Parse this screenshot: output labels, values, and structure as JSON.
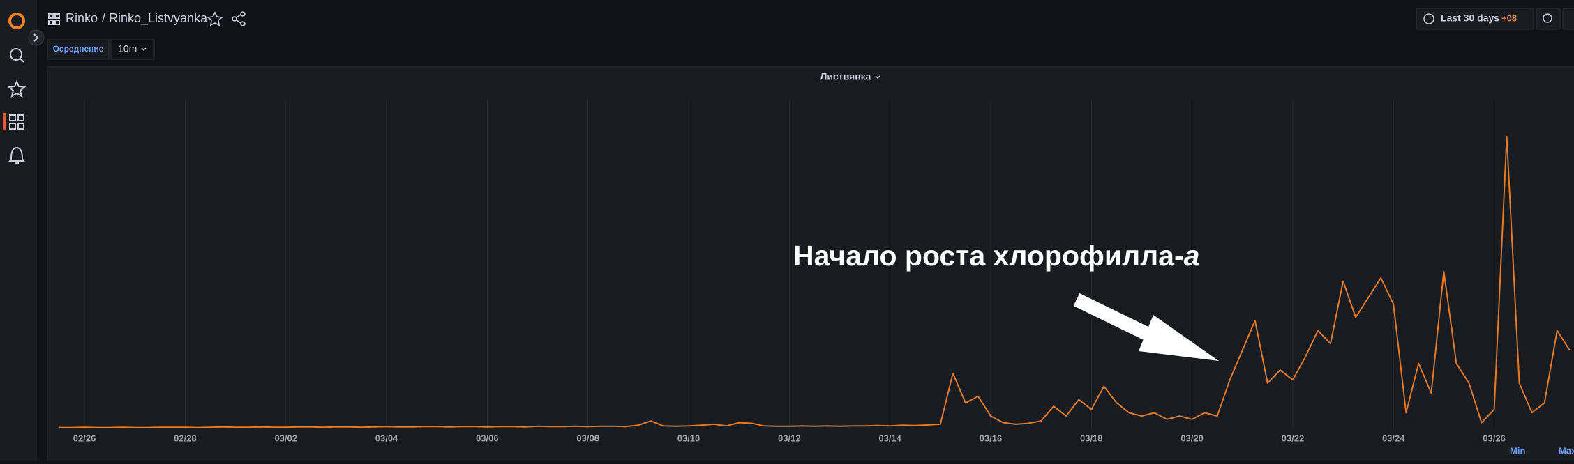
{
  "header": {
    "folder": "Rinko",
    "dashboard": "/ Rinko_Listvyanka",
    "time_range": "Last 30 days",
    "timezone": "+08"
  },
  "variables": {
    "label": "Осреднение",
    "value": "10m"
  },
  "legend": {
    "min": "Min",
    "max": "Max"
  },
  "chart_data": {
    "type": "line",
    "title": "Листвянка",
    "annotation": {
      "text": "Начало роста хлорофилла-",
      "italic": "a"
    },
    "categories": [
      null,
      null,
      "02/26",
      null,
      null,
      null,
      null,
      null,
      null,
      null,
      "02/28",
      null,
      null,
      null,
      null,
      null,
      null,
      null,
      "03/02",
      null,
      null,
      null,
      null,
      null,
      null,
      null,
      "03/04",
      null,
      null,
      null,
      null,
      null,
      null,
      null,
      "03/06",
      null,
      null,
      null,
      null,
      null,
      null,
      null,
      "03/08",
      null,
      null,
      null,
      null,
      null,
      null,
      null,
      "03/10",
      null,
      null,
      null,
      null,
      null,
      null,
      null,
      "03/12",
      null,
      null,
      null,
      null,
      null,
      null,
      null,
      "03/14",
      null,
      null,
      null,
      null,
      null,
      null,
      null,
      "03/16",
      null,
      null,
      null,
      null,
      null,
      null,
      null,
      "03/18",
      null,
      null,
      null,
      null,
      null,
      null,
      null,
      "03/20",
      null,
      null,
      null,
      null,
      null,
      null,
      null,
      "03/22",
      null,
      null,
      null,
      null,
      null,
      null,
      null,
      "03/24",
      null,
      null,
      null,
      null,
      null,
      null,
      null,
      "03/26",
      null,
      null,
      null,
      null,
      null,
      null
    ],
    "series": [
      {
        "color": "#e27a2a",
        "values": [
          0.5,
          0.5,
          0.6,
          0.5,
          0.5,
          0.6,
          0.5,
          0.5,
          0.6,
          0.6,
          0.6,
          0.5,
          0.6,
          0.7,
          0.6,
          0.6,
          0.7,
          0.6,
          0.6,
          0.7,
          0.7,
          0.6,
          0.7,
          0.7,
          0.6,
          0.7,
          0.8,
          0.7,
          0.7,
          0.8,
          0.8,
          0.7,
          0.8,
          0.8,
          0.7,
          0.8,
          0.8,
          0.7,
          0.9,
          0.8,
          0.8,
          0.9,
          0.8,
          0.9,
          0.9,
          0.8,
          1.2,
          2.5,
          1.0,
          0.9,
          1.0,
          1.2,
          1.5,
          1.0,
          2.0,
          1.8,
          1.0,
          0.9,
          0.9,
          1.0,
          0.9,
          1.0,
          0.9,
          1.0,
          1.0,
          1.1,
          1.0,
          1.2,
          1.1,
          1.3,
          1.5,
          17,
          8,
          10,
          4,
          2,
          1.5,
          1.8,
          2.5,
          7,
          4,
          9,
          6,
          13,
          8,
          5,
          4,
          5,
          3,
          4,
          3,
          5,
          4,
          15,
          24,
          33,
          14,
          18,
          15,
          22,
          30,
          26,
          45,
          34,
          40,
          46,
          38,
          5,
          20,
          11,
          48,
          20,
          14,
          2,
          6,
          89,
          14,
          5,
          8,
          30,
          24
        ]
      }
    ],
    "ylim": [
      0,
      100
    ],
    "grid": true
  }
}
